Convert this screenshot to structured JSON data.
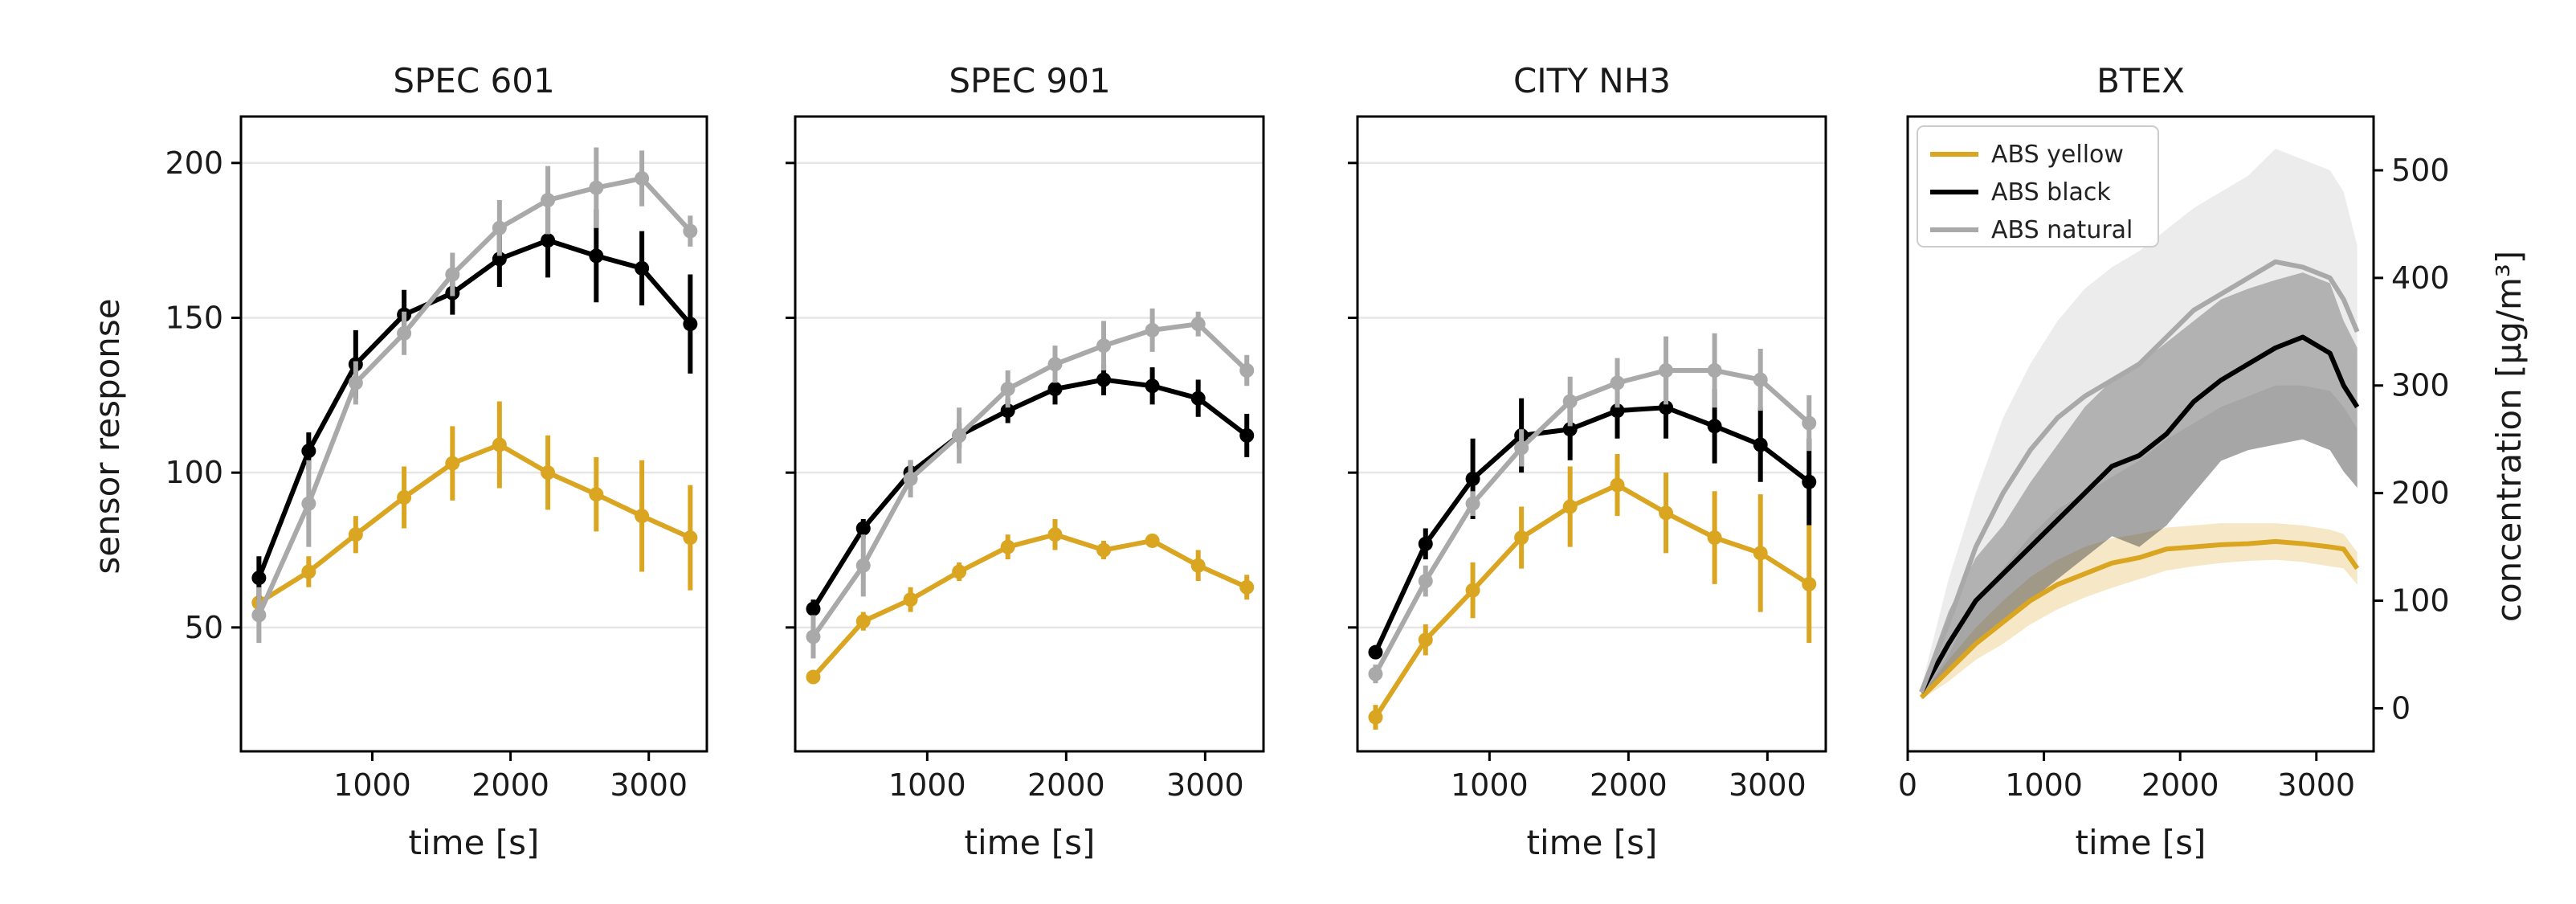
{
  "colors": {
    "ABS yellow": "#DAA520",
    "ABS black": "#000000",
    "ABS natural": "#A9A9A9"
  },
  "chart_data": [
    {
      "type": "line",
      "title": "SPEC 601",
      "xlabel": "time [s]",
      "ylabel": "sensor response",
      "xlim": [
        50,
        3420
      ],
      "ylim": [
        10,
        215
      ],
      "xticks": [
        "1000",
        "2000",
        "3000"
      ],
      "xtick_values": [
        1000,
        2000,
        3000
      ],
      "yticks": [
        "50",
        "100",
        "150",
        "200"
      ],
      "ytick_values": [
        50,
        100,
        150,
        200
      ],
      "grid": true,
      "x": [
        180,
        540,
        880,
        1230,
        1580,
        1920,
        2270,
        2620,
        2950,
        3300
      ],
      "series": [
        {
          "name": "ABS yellow",
          "values": [
            58,
            68,
            80,
            92,
            103,
            109,
            100,
            93,
            86,
            79
          ],
          "errors": [
            3,
            5,
            6,
            10,
            12,
            14,
            12,
            12,
            18,
            17
          ]
        },
        {
          "name": "ABS black",
          "values": [
            66,
            107,
            135,
            151,
            158,
            169,
            175,
            170,
            166,
            148
          ],
          "errors": [
            7,
            6,
            11,
            8,
            7,
            9,
            12,
            15,
            12,
            16
          ]
        },
        {
          "name": "ABS natural",
          "values": [
            54,
            90,
            129,
            145,
            164,
            179,
            188,
            192,
            195,
            178
          ],
          "errors": [
            9,
            14,
            7,
            7,
            7,
            9,
            11,
            13,
            9,
            5
          ]
        }
      ]
    },
    {
      "type": "line",
      "title": "SPEC 901",
      "xlabel": "time [s]",
      "ylabel": "",
      "xlim": [
        50,
        3420
      ],
      "ylim": [
        10,
        215
      ],
      "xticks": [
        "1000",
        "2000",
        "3000"
      ],
      "xtick_values": [
        1000,
        2000,
        3000
      ],
      "yticks": [],
      "ytick_values": [
        50,
        100,
        150,
        200
      ],
      "grid": true,
      "x": [
        180,
        540,
        880,
        1230,
        1580,
        1920,
        2270,
        2620,
        2950,
        3300
      ],
      "series": [
        {
          "name": "ABS yellow",
          "values": [
            34,
            52,
            59,
            68,
            76,
            80,
            75,
            78,
            70,
            63
          ],
          "errors": [
            2,
            3,
            4,
            3,
            4,
            5,
            3,
            2,
            5,
            4
          ]
        },
        {
          "name": "ABS black",
          "values": [
            56,
            82,
            100,
            112,
            120,
            127,
            130,
            128,
            124,
            112
          ],
          "errors": [
            3,
            3,
            4,
            4,
            4,
            5,
            5,
            6,
            6,
            7
          ]
        },
        {
          "name": "ABS natural",
          "values": [
            47,
            70,
            98,
            112,
            127,
            135,
            141,
            146,
            148,
            133
          ],
          "errors": [
            7,
            10,
            6,
            9,
            6,
            6,
            8,
            7,
            4,
            5
          ]
        }
      ]
    },
    {
      "type": "line",
      "title": "CITY NH3",
      "xlabel": "time [s]",
      "ylabel": "",
      "xlim": [
        50,
        3420
      ],
      "ylim": [
        10,
        215
      ],
      "xticks": [
        "1000",
        "2000",
        "3000"
      ],
      "xtick_values": [
        1000,
        2000,
        3000
      ],
      "yticks": [],
      "ytick_values": [
        50,
        100,
        150,
        200
      ],
      "grid": true,
      "x": [
        180,
        540,
        880,
        1230,
        1580,
        1920,
        2270,
        2620,
        2950,
        3300
      ],
      "series": [
        {
          "name": "ABS yellow",
          "values": [
            21,
            46,
            62,
            79,
            89,
            96,
            87,
            79,
            74,
            64
          ],
          "errors": [
            4,
            5,
            9,
            10,
            13,
            10,
            13,
            15,
            19,
            19
          ]
        },
        {
          "name": "ABS black",
          "values": [
            42,
            77,
            98,
            112,
            114,
            120,
            121,
            115,
            109,
            97
          ],
          "errors": [
            2,
            5,
            13,
            12,
            10,
            9,
            10,
            12,
            12,
            14
          ]
        },
        {
          "name": "ABS natural",
          "values": [
            35,
            65,
            90,
            108,
            123,
            129,
            133,
            133,
            130,
            116
          ],
          "errors": [
            3,
            5,
            4,
            6,
            8,
            8,
            11,
            12,
            10,
            9
          ]
        }
      ]
    },
    {
      "type": "area",
      "title": "BTEX",
      "xlabel": "time [s]",
      "ylabel": "concentration [μg/m³]",
      "xlim": [
        0,
        3420
      ],
      "ylim": [
        -40,
        550
      ],
      "xticks": [
        "0",
        "1000",
        "2000",
        "3000"
      ],
      "xtick_values": [
        0,
        1000,
        2000,
        3000
      ],
      "yticks": [
        "0",
        "100",
        "200",
        "300",
        "400",
        "500"
      ],
      "ytick_values": [
        0,
        100,
        200,
        300,
        400,
        500
      ],
      "grid": false,
      "legend": {
        "location": "upper-left",
        "entries": [
          "ABS yellow",
          "ABS black",
          "ABS natural"
        ]
      },
      "series": [
        {
          "name": "ABS yellow",
          "x": [
            100,
            300,
            500,
            700,
            900,
            1100,
            1300,
            1500,
            1700,
            1900,
            2100,
            2300,
            2500,
            2700,
            2900,
            3100,
            3200,
            3300
          ],
          "values": [
            10,
            35,
            60,
            80,
            100,
            115,
            125,
            135,
            140,
            148,
            150,
            152,
            153,
            155,
            153,
            150,
            148,
            130
          ],
          "lower": [
            8,
            25,
            45,
            60,
            78,
            92,
            103,
            112,
            120,
            128,
            132,
            135,
            137,
            138,
            136,
            132,
            130,
            115
          ],
          "upper": [
            12,
            45,
            75,
            100,
            122,
            138,
            150,
            158,
            162,
            168,
            170,
            172,
            172,
            172,
            170,
            166,
            162,
            145
          ]
        },
        {
          "name": "ABS black",
          "x": [
            100,
            300,
            500,
            700,
            900,
            1100,
            1300,
            1500,
            1700,
            1900,
            2100,
            2300,
            2500,
            2700,
            2900,
            3100,
            3200,
            3300
          ],
          "values": [
            15,
            60,
            100,
            125,
            150,
            175,
            200,
            225,
            235,
            255,
            285,
            305,
            320,
            335,
            345,
            330,
            300,
            280
          ],
          "lower": [
            12,
            35,
            60,
            80,
            100,
            120,
            140,
            160,
            150,
            170,
            200,
            230,
            240,
            245,
            250,
            240,
            220,
            205
          ],
          "upper": [
            20,
            90,
            140,
            170,
            210,
            245,
            280,
            305,
            320,
            340,
            360,
            380,
            390,
            398,
            405,
            395,
            360,
            335
          ]
        },
        {
          "name": "ABS natural",
          "x": [
            100,
            300,
            500,
            700,
            900,
            1100,
            1300,
            1500,
            1700,
            1900,
            2100,
            2300,
            2500,
            2700,
            2900,
            3100,
            3200,
            3300
          ],
          "values": [
            15,
            80,
            150,
            200,
            240,
            270,
            290,
            305,
            320,
            345,
            370,
            385,
            400,
            415,
            410,
            400,
            380,
            350
          ],
          "lower": [
            12,
            50,
            100,
            130,
            160,
            185,
            200,
            215,
            230,
            250,
            265,
            280,
            290,
            300,
            300,
            295,
            280,
            260
          ],
          "upper": [
            20,
            120,
            200,
            270,
            320,
            360,
            390,
            410,
            425,
            445,
            465,
            480,
            495,
            520,
            510,
            500,
            480,
            430
          ]
        }
      ]
    }
  ]
}
